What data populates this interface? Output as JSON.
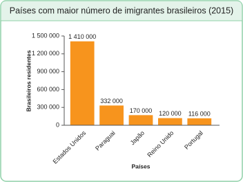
{
  "chart_data": {
    "type": "bar",
    "title": "Países com maior número de imigrantes brasileiros (2015)",
    "categories": [
      "Estados Unidos",
      "Paraguai",
      "Japão",
      "Reino Unido",
      "Portugal"
    ],
    "values": [
      1410000,
      332000,
      170000,
      120000,
      116000
    ],
    "value_labels": [
      "1 410 000",
      "332 000",
      "170 000",
      "120 000",
      "116 000"
    ],
    "color": "#f7941d",
    "ylim": [
      0,
      1500000
    ],
    "yticks": [
      0,
      {
        "value": 300000,
        "label": "300 000"
      },
      {
        "value": 600000,
        "label": "600 000"
      },
      {
        "value": 900000,
        "label": "900 000"
      },
      {
        "value": 1200000,
        "label": "1 200 000"
      },
      {
        "value": 1500000,
        "label": "1 500 000"
      }
    ],
    "xlabel": "Países",
    "ylabel": "Brasileiros residentes"
  }
}
